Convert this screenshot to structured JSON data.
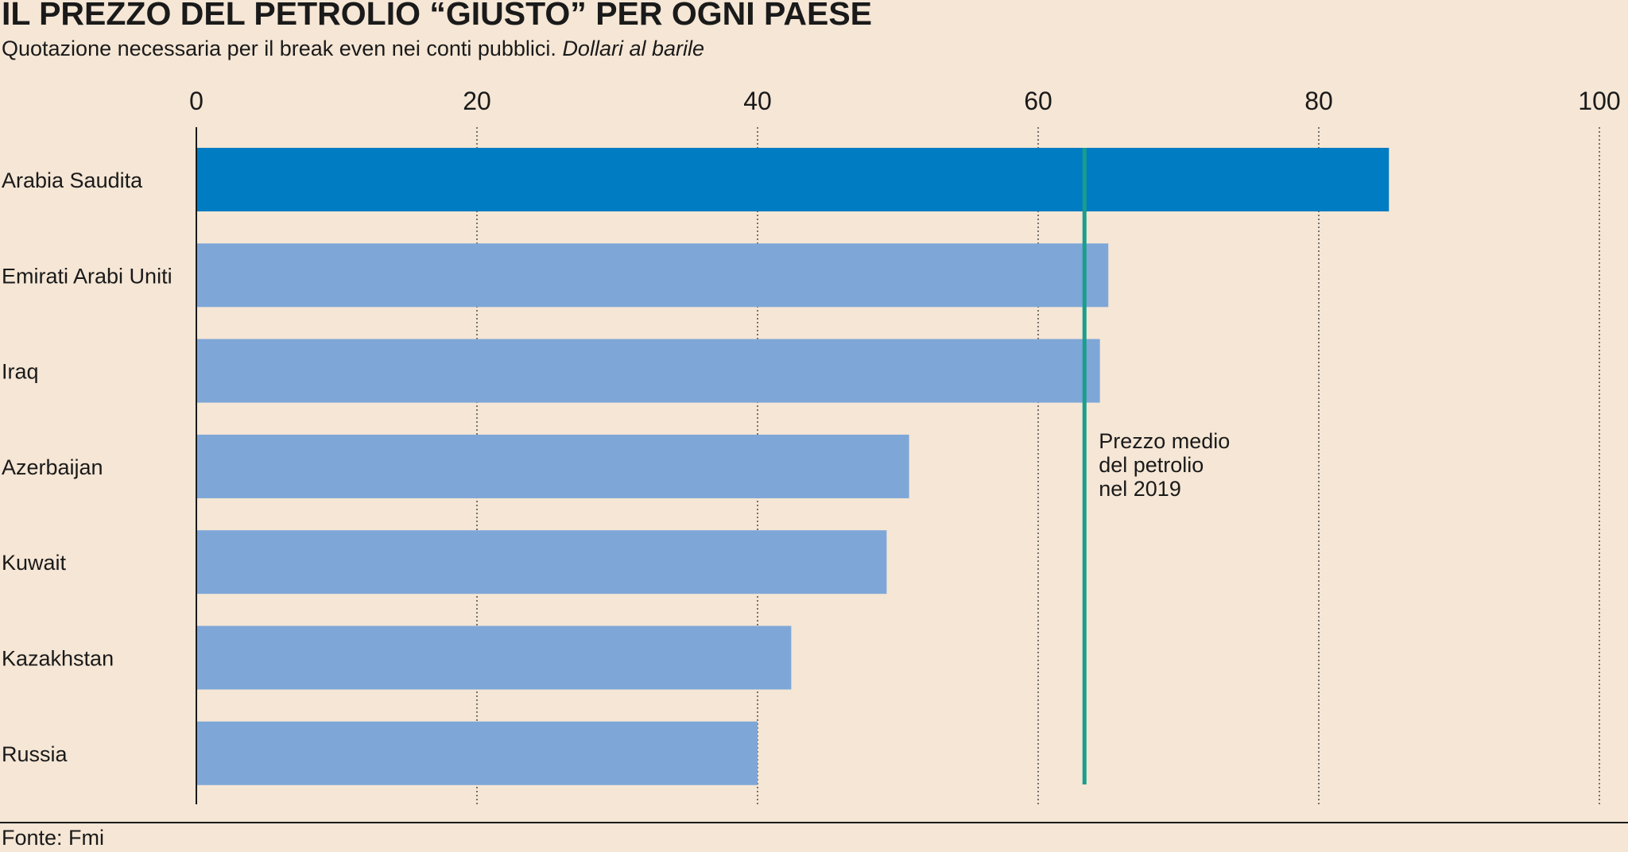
{
  "title": "IL PREZZO DEL PETROLIO “GIUSTO” PER OGNI PAESE",
  "subtitle_main": "Quotazione necessaria per il break even nei conti pubblici.",
  "subtitle_unit": "Dollari al barile",
  "source": "Fonte: Fmi",
  "colors": {
    "background": "#f5e6d5",
    "highlight_bar": "#007cc3",
    "bar": "#7ea7d8",
    "reference_line": "#1a9e8c",
    "axis": "#1a1a1a"
  },
  "chart_data": {
    "type": "bar",
    "orientation": "horizontal",
    "title": "IL PREZZO DEL PETROLIO “GIUSTO” PER OGNI PAESE",
    "xlabel": "",
    "ylabel": "",
    "xlim": [
      0,
      100
    ],
    "ticks": [
      0,
      20,
      40,
      60,
      80,
      100
    ],
    "grid": true,
    "categories": [
      "Arabia Saudita",
      "Emirati Arabi Uniti",
      "Iraq",
      "Azerbaijan",
      "Kuwait",
      "Kazakhstan",
      "Russia"
    ],
    "values": [
      85,
      65,
      64.4,
      50.8,
      49.2,
      42.4,
      40
    ],
    "highlight_index": 0,
    "reference_line": {
      "value": 63.3,
      "label_lines": [
        "Prezzo medio",
        "del petrolio",
        "nel 2019"
      ]
    }
  }
}
